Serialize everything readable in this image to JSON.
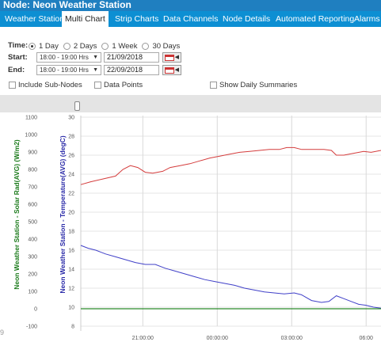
{
  "window": {
    "title": "Node: Neon Weather Station"
  },
  "tabs": [
    {
      "label": "Weather Station",
      "active": false
    },
    {
      "label": "Multi Chart",
      "active": true
    },
    {
      "label": "Strip Charts",
      "active": false
    },
    {
      "label": "Data Channels",
      "active": false
    },
    {
      "label": "Node Details",
      "active": false
    },
    {
      "label": "Automated Reporting",
      "active": false
    },
    {
      "label": "Alarms",
      "active": false
    }
  ],
  "controls": {
    "time_label": "Time:",
    "time_options": [
      {
        "label": "1 Day",
        "selected": true
      },
      {
        "label": "2 Days",
        "selected": false
      },
      {
        "label": "1 Week",
        "selected": false
      },
      {
        "label": "30 Days",
        "selected": false
      }
    ],
    "start_label": "Start:",
    "start_time": "18:00 - 19:00 Hrs",
    "start_date": "21/09/2018",
    "end_label": "End:",
    "end_time": "18:00 - 19:00 Hrs",
    "end_date": "22/09/2018",
    "include_sub_nodes": {
      "label": "Include Sub-Nodes",
      "checked": false
    },
    "data_points": {
      "label": "Data Points",
      "checked": false
    },
    "show_daily_summaries": {
      "label": "Show Daily Summaries",
      "checked": false
    }
  },
  "stray_label": "9",
  "chart_data": {
    "type": "line",
    "y_left_outer": {
      "title": "Neon Weather Station - Solar Rad(AVG) (W/m2)",
      "ticks": [
        "1100",
        "1000",
        "900",
        "800",
        "700",
        "600",
        "500",
        "400",
        "300",
        "200",
        "100",
        "0",
        "-100"
      ],
      "range": [
        -100,
        1100
      ],
      "color": "#1a7a1a"
    },
    "y_left_inner": {
      "title": "Neon Weather Station - Temperature(AVG) (degC)",
      "ticks": [
        "30",
        "28",
        "26",
        "24",
        "22",
        "20",
        "18",
        "16",
        "14",
        "12",
        "10",
        "8"
      ],
      "range": [
        8,
        30
      ],
      "color": "#2a2aa8"
    },
    "x_ticks": [
      "21:00:00",
      "00:00:00",
      "03:00:00",
      "06:00"
    ],
    "x_range_hours": [
      18.5,
      30.6
    ],
    "x_tick_hours": [
      21,
      24,
      27,
      30
    ],
    "grid": true,
    "series": [
      {
        "color": "#d43c3c",
        "axis": "temperature",
        "points": [
          [
            18.5,
            22.9
          ],
          [
            18.9,
            23.2
          ],
          [
            19.4,
            23.5
          ],
          [
            19.9,
            23.8
          ],
          [
            20.2,
            24.5
          ],
          [
            20.5,
            24.9
          ],
          [
            20.8,
            24.7
          ],
          [
            21.1,
            24.2
          ],
          [
            21.4,
            24.1
          ],
          [
            21.8,
            24.3
          ],
          [
            22.1,
            24.7
          ],
          [
            22.5,
            24.9
          ],
          [
            22.9,
            25.1
          ],
          [
            23.3,
            25.4
          ],
          [
            23.7,
            25.7
          ],
          [
            24.1,
            25.9
          ],
          [
            24.5,
            26.1
          ],
          [
            24.9,
            26.3
          ],
          [
            25.3,
            26.4
          ],
          [
            25.7,
            26.5
          ],
          [
            26.1,
            26.6
          ],
          [
            26.5,
            26.6
          ],
          [
            26.8,
            26.8
          ],
          [
            27.1,
            26.8
          ],
          [
            27.4,
            26.6
          ],
          [
            27.8,
            26.6
          ],
          [
            28.3,
            26.6
          ],
          [
            28.6,
            26.5
          ],
          [
            28.8,
            26.0
          ],
          [
            29.1,
            26.0
          ],
          [
            29.5,
            26.2
          ],
          [
            29.9,
            26.4
          ],
          [
            30.2,
            26.3
          ],
          [
            30.6,
            26.5
          ]
        ]
      },
      {
        "color": "#4040c8",
        "axis": "temperature",
        "points": [
          [
            18.5,
            16.5
          ],
          [
            18.8,
            16.2
          ],
          [
            19.1,
            16.0
          ],
          [
            19.5,
            15.6
          ],
          [
            19.9,
            15.3
          ],
          [
            20.3,
            15.0
          ],
          [
            20.7,
            14.7
          ],
          [
            21.1,
            14.5
          ],
          [
            21.5,
            14.5
          ],
          [
            21.9,
            14.1
          ],
          [
            22.3,
            13.8
          ],
          [
            22.7,
            13.5
          ],
          [
            23.1,
            13.2
          ],
          [
            23.5,
            12.9
          ],
          [
            23.9,
            12.7
          ],
          [
            24.3,
            12.5
          ],
          [
            24.7,
            12.3
          ],
          [
            25.1,
            12.0
          ],
          [
            25.5,
            11.8
          ],
          [
            25.9,
            11.6
          ],
          [
            26.3,
            11.5
          ],
          [
            26.7,
            11.4
          ],
          [
            27.1,
            11.5
          ],
          [
            27.4,
            11.3
          ],
          [
            27.8,
            10.7
          ],
          [
            28.2,
            10.5
          ],
          [
            28.5,
            10.6
          ],
          [
            28.8,
            11.2
          ],
          [
            29.1,
            10.9
          ],
          [
            29.4,
            10.6
          ],
          [
            29.7,
            10.3
          ],
          [
            30.0,
            10.2
          ],
          [
            30.3,
            10.0
          ],
          [
            30.6,
            9.9
          ]
        ]
      },
      {
        "color": "#2a8a2a",
        "axis": "solar",
        "points": [
          [
            18.5,
            0
          ],
          [
            30.6,
            0
          ]
        ]
      }
    ]
  }
}
